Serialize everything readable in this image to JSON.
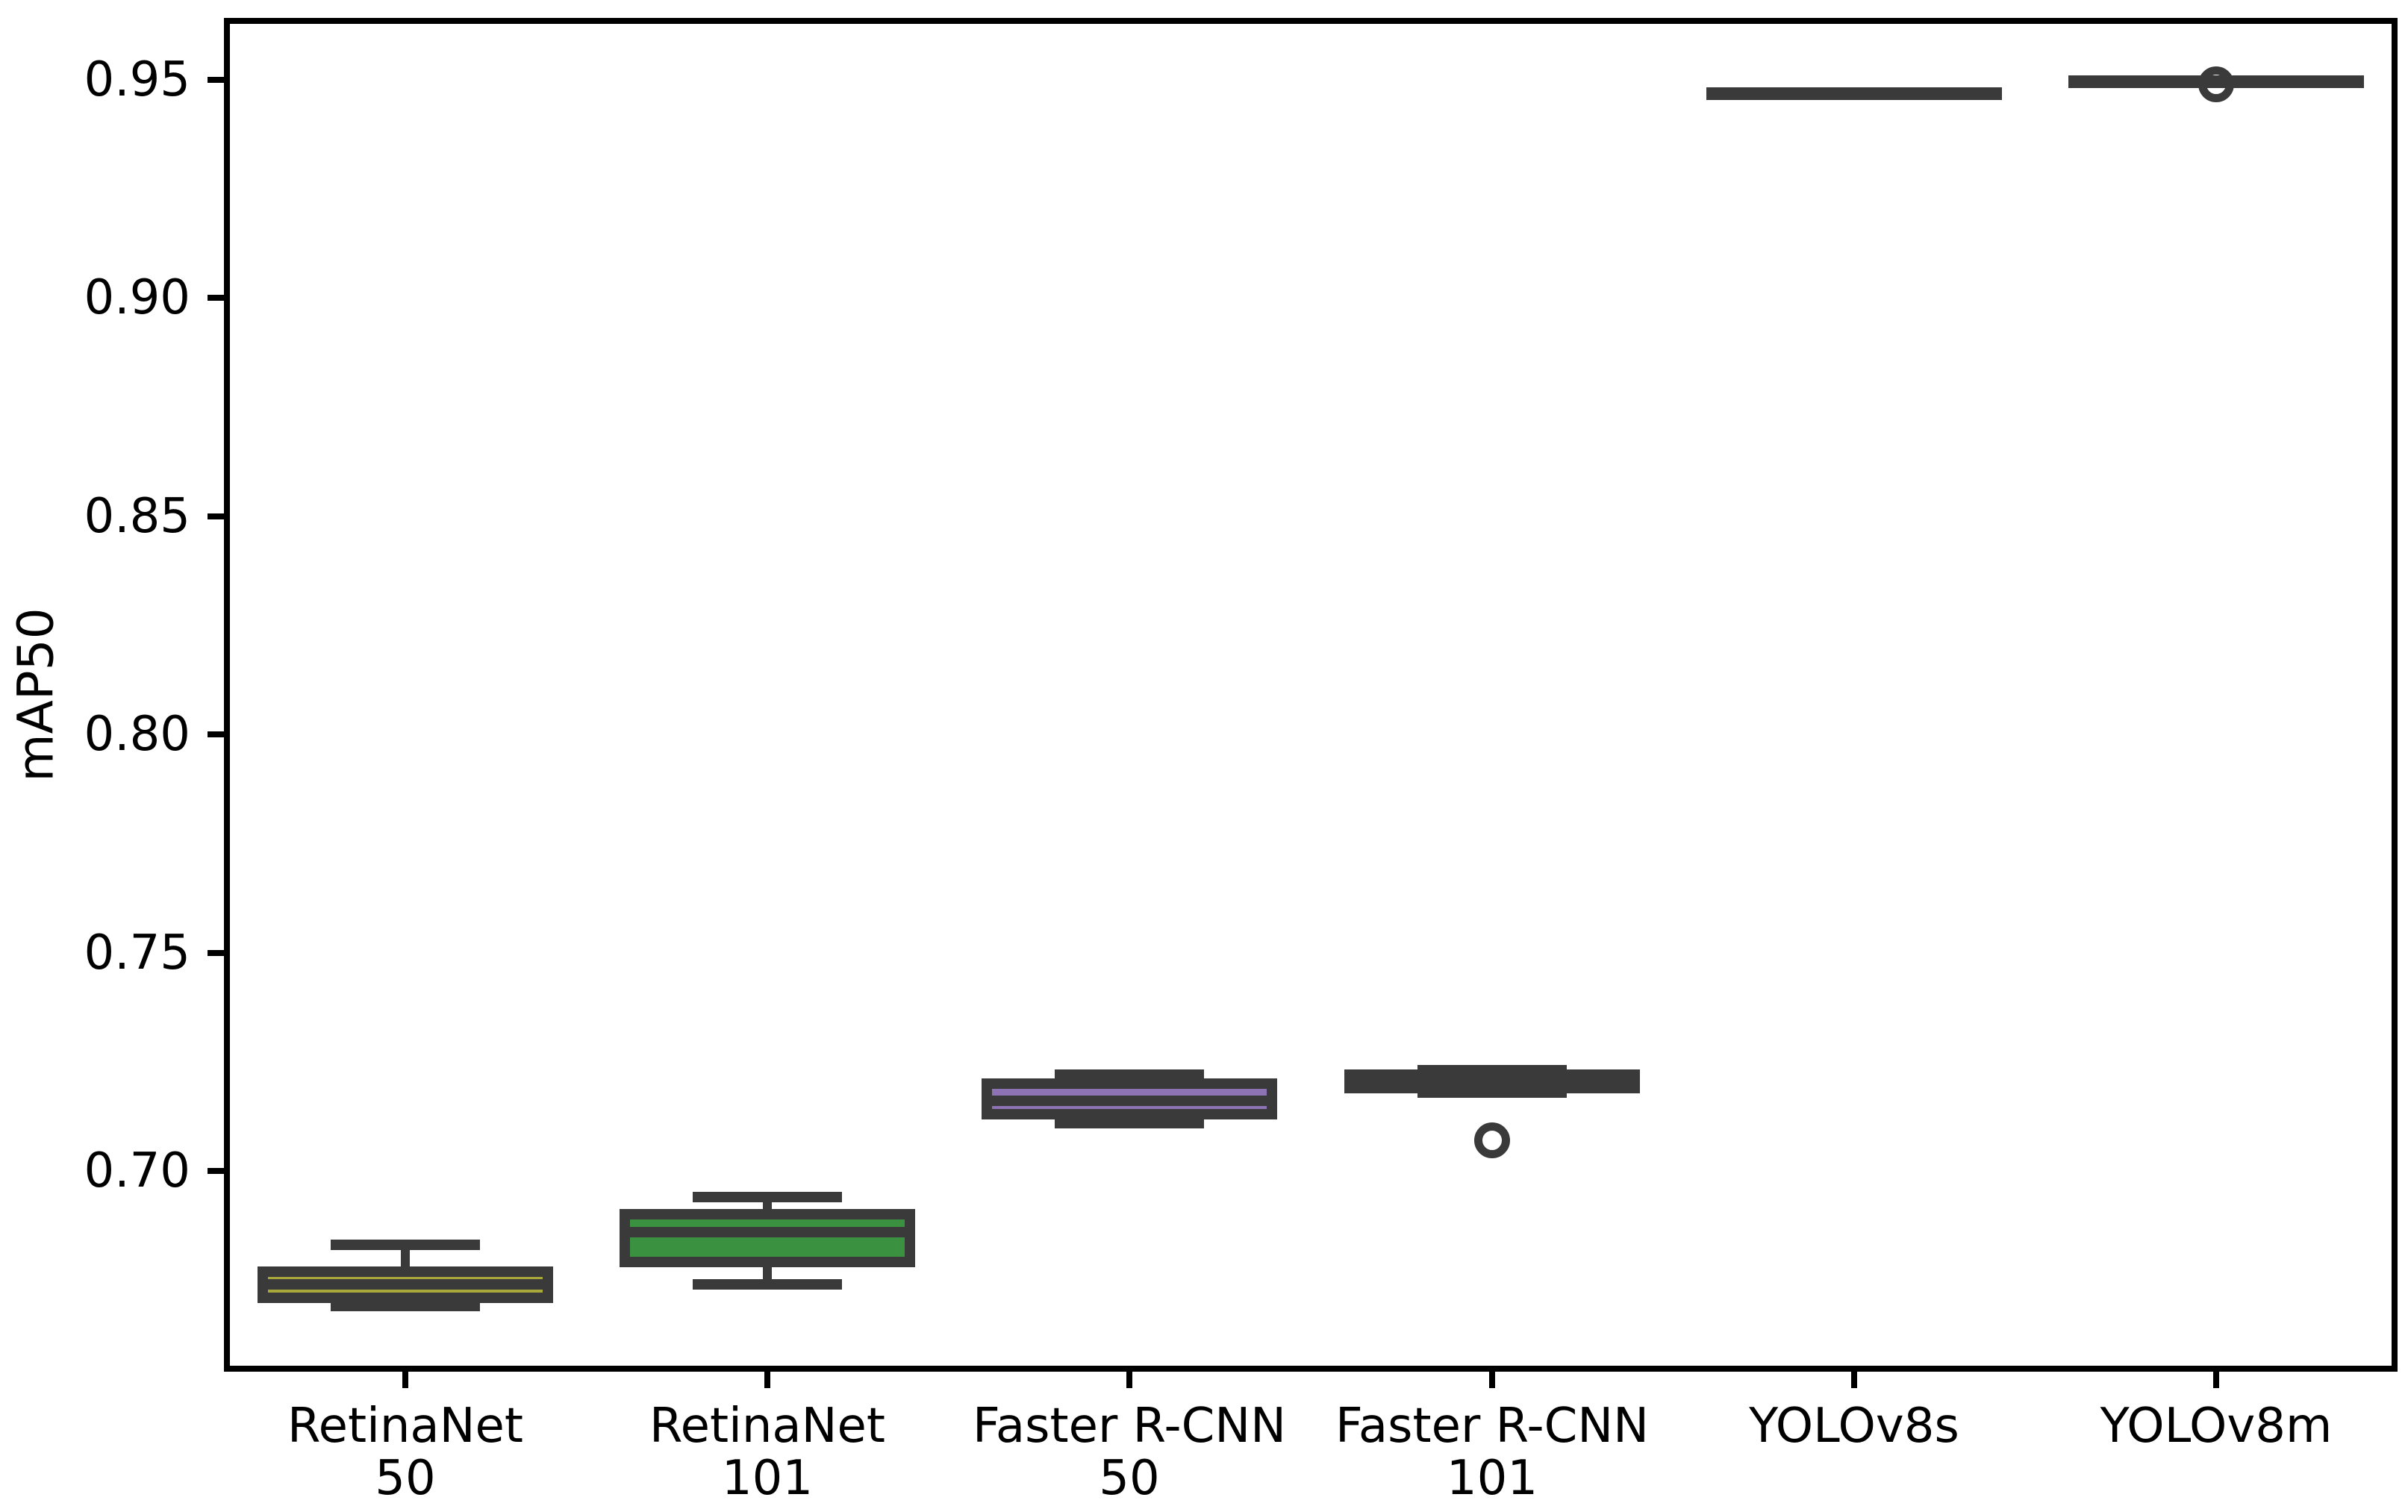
{
  "figure": {
    "background": "#ffffff",
    "spine_color": "#000000",
    "element_color": "#3a3a3a"
  },
  "chart_data": {
    "type": "box",
    "title": "",
    "xlabel": "",
    "ylabel": "mAP50",
    "ylim": [
      0.655,
      0.963
    ],
    "grid": false,
    "legend": null,
    "yticks": {
      "values": [
        0.7,
        0.75,
        0.8,
        0.85,
        0.9,
        0.95
      ],
      "labels": [
        "0.70",
        "0.75",
        "0.80",
        "0.85",
        "0.90",
        "0.95"
      ]
    },
    "categories": [
      {
        "lines": [
          "RetinaNet",
          "50"
        ]
      },
      {
        "lines": [
          "RetinaNet",
          "101"
        ]
      },
      {
        "lines": [
          "Faster R-CNN",
          "50"
        ]
      },
      {
        "lines": [
          "Faster R-CNN",
          "101"
        ]
      },
      {
        "lines": [
          "YOLOv8s"
        ]
      },
      {
        "lines": [
          "YOLOv8m"
        ]
      }
    ],
    "boxes": [
      {
        "label": "RetinaNet 50",
        "fill": "#a9a83b",
        "whislo": 0.669,
        "q1": 0.671,
        "med": 0.674,
        "q3": 0.677,
        "whishi": 0.683,
        "fliers": []
      },
      {
        "label": "RetinaNet 101",
        "fill": "#3a913f",
        "whislo": 0.674,
        "q1": 0.679,
        "med": 0.686,
        "q3": 0.69,
        "whishi": 0.694,
        "fliers": []
      },
      {
        "label": "Faster R-CNN 50",
        "fill": "#8d73b3",
        "whislo": 0.711,
        "q1": 0.713,
        "med": 0.716,
        "q3": 0.72,
        "whishi": 0.722,
        "fliers": []
      },
      {
        "label": "Faster R-CNN 101",
        "fill": "#a94a42",
        "whislo": 0.718,
        "q1": 0.719,
        "med": 0.721,
        "q3": 0.722,
        "whishi": 0.723,
        "fliers": [
          0.707
        ]
      },
      {
        "label": "YOLOv8s",
        "fill": "#3a3a3a",
        "whislo": 0.9466,
        "q1": 0.9467,
        "med": 0.9468,
        "q3": 0.9469,
        "whishi": 0.947,
        "fliers": []
      },
      {
        "label": "YOLOv8m",
        "fill": "#3a3a3a",
        "whislo": 0.9493,
        "q1": 0.9494,
        "med": 0.9495,
        "q3": 0.9496,
        "whishi": 0.9497,
        "fliers": [
          0.949
        ]
      }
    ]
  }
}
